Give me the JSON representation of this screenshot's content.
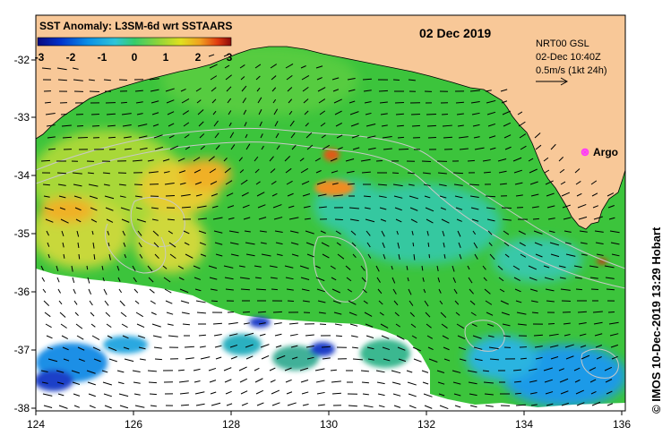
{
  "title": "SST Anomaly: L3SM-6d wrt SSTAARS",
  "date_label": "02 Dec 2019",
  "colorbar": {
    "ticks": [
      "-3",
      "-2",
      "-1",
      "0",
      "1",
      "2",
      "3"
    ],
    "min": -3,
    "max": 3,
    "colors": [
      "#0a0a80",
      "#0033cc",
      "#0a8fe6",
      "#2ec4d8",
      "#35cc6a",
      "#8cd43a",
      "#e0e020",
      "#f0a020",
      "#e03b10",
      "#8a0a0a"
    ]
  },
  "current_info": {
    "line1": "NRT00 GSL",
    "line2": "02-Dec 10:40Z",
    "line3": "0.5m/s (1kt 24h)"
  },
  "argo_label": "Argo",
  "credit": "© IMOS 10-Dec-2019 13:29 Hobart",
  "axes": {
    "lon_ticks": [
      "124",
      "126",
      "128",
      "130",
      "132",
      "134",
      "136"
    ],
    "lat_ticks": [
      "-32",
      "-33",
      "-34",
      "-35",
      "-36",
      "-37",
      "-38"
    ]
  },
  "colors": {
    "land": "#f8c898",
    "no_data": "#ffffff",
    "ocean_base": "#3cc43c",
    "arrow": "#000000",
    "argo": "#ff30ff"
  }
}
